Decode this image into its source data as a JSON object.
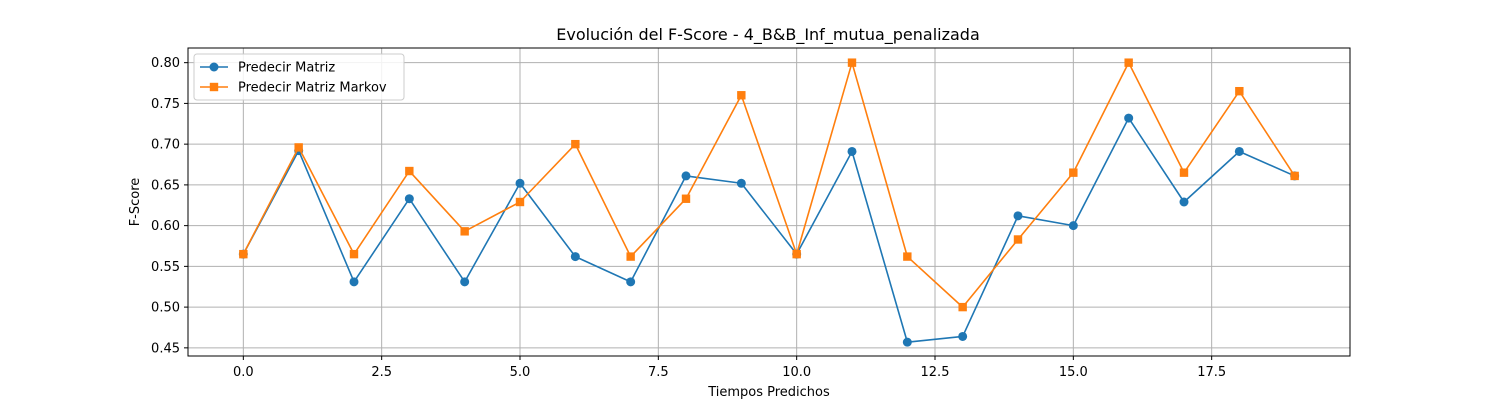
{
  "chart_data": {
    "type": "line",
    "title": "Evolución del F-Score - 4_B&B_Inf_mutua_penalizada",
    "xlabel": "Tiempos Predichos",
    "ylabel": "F-Score",
    "xlim": [
      -1.0,
      20.0
    ],
    "ylim": [
      0.44,
      0.818
    ],
    "xticks": [
      0.0,
      2.5,
      5.0,
      7.5,
      10.0,
      12.5,
      15.0,
      17.5
    ],
    "xtick_labels": [
      "0.0",
      "2.5",
      "5.0",
      "7.5",
      "10.0",
      "12.5",
      "15.0",
      "17.5"
    ],
    "yticks": [
      0.45,
      0.5,
      0.55,
      0.6,
      0.65,
      0.7,
      0.75,
      0.8
    ],
    "ytick_labels": [
      "0.45",
      "0.50",
      "0.55",
      "0.60",
      "0.65",
      "0.70",
      "0.75",
      "0.80"
    ],
    "grid": true,
    "legend_position": "top-left",
    "x": [
      0,
      1,
      2,
      3,
      4,
      5,
      6,
      7,
      8,
      9,
      10,
      11,
      12,
      13,
      14,
      15,
      16,
      17,
      18,
      19
    ],
    "series": [
      {
        "name": "Predecir Matriz",
        "color": "#1f77b4",
        "marker": "circle",
        "values": [
          0.565,
          0.692,
          0.531,
          0.633,
          0.531,
          0.652,
          0.562,
          0.531,
          0.661,
          0.652,
          0.565,
          0.691,
          0.457,
          0.464,
          0.612,
          0.6,
          0.732,
          0.629,
          0.691,
          0.661
        ]
      },
      {
        "name": "Predecir Matriz Markov",
        "color": "#ff7f0e",
        "marker": "square",
        "values": [
          0.565,
          0.696,
          0.565,
          0.667,
          0.593,
          0.629,
          0.7,
          0.562,
          0.633,
          0.76,
          0.565,
          0.8,
          0.562,
          0.5,
          0.583,
          0.665,
          0.8,
          0.665,
          0.765,
          0.661
        ]
      }
    ]
  }
}
